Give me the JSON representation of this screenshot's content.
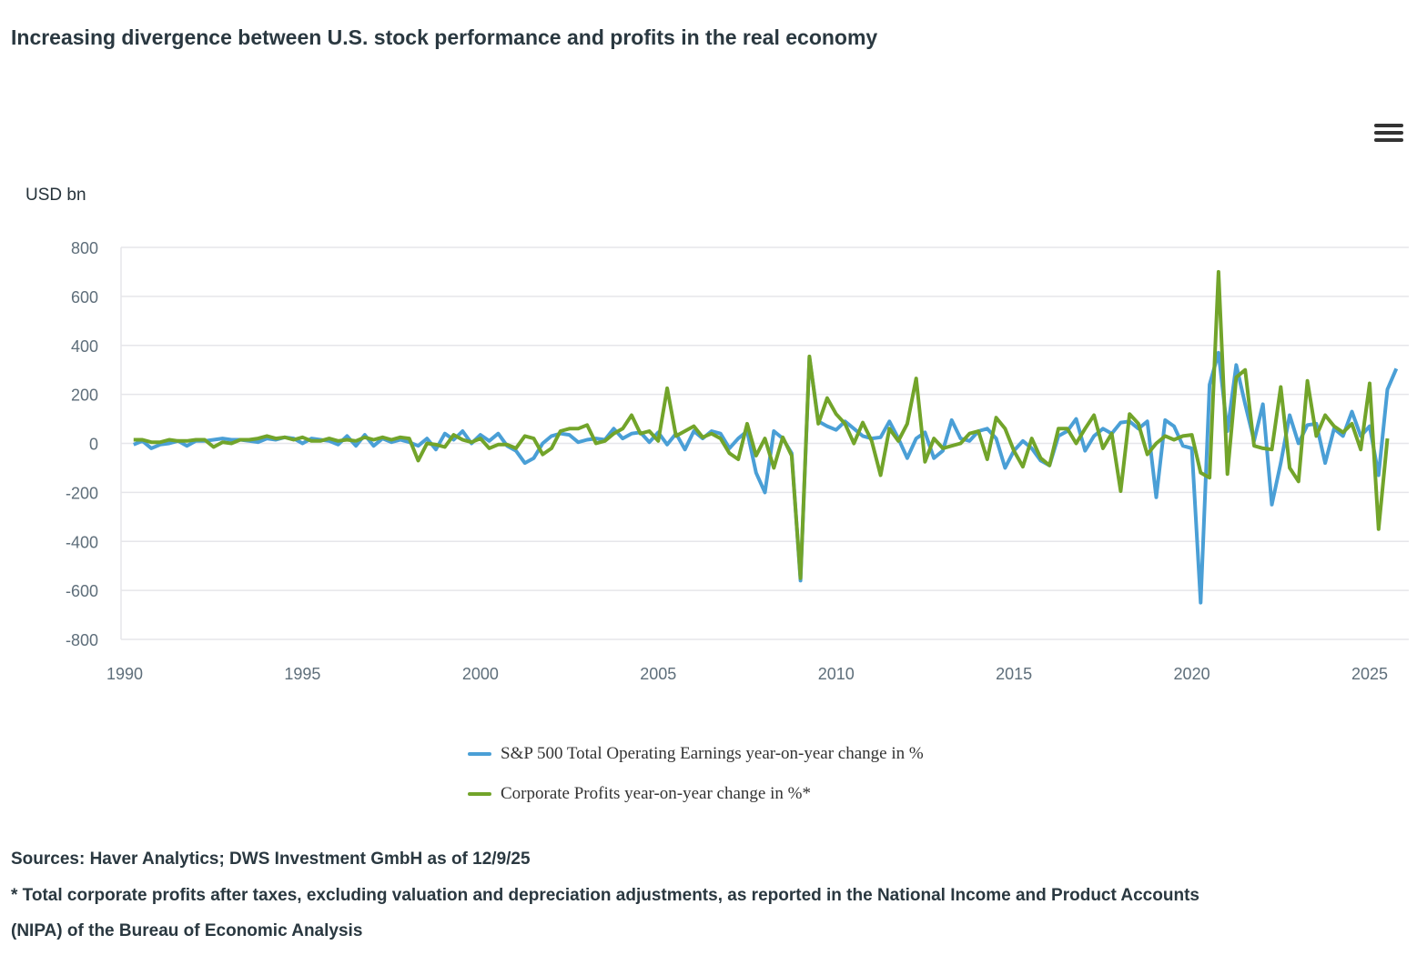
{
  "title": "Increasing divergence between U.S. stock performance and profits in the real economy",
  "menu_icon": "hamburger-menu-icon",
  "footnotes": {
    "sources": "Sources: Haver Analytics; DWS Investment GmbH as of 12/9/25",
    "note_line1": "* Total corporate profits after taxes, excluding valuation and depreciation adjustments, as reported in the National Income and Product Accounts",
    "note_line2": "(NIPA) of the Bureau of Economic Analysis"
  },
  "chart_data": {
    "type": "line",
    "ylabel": "USD bn",
    "ylim": [
      -800,
      800
    ],
    "yticks": [
      800,
      600,
      400,
      200,
      0,
      -200,
      -400,
      -600,
      -800
    ],
    "xlim": [
      1990,
      2026
    ],
    "xticks": [
      1990,
      1995,
      2000,
      2005,
      2010,
      2015,
      2020,
      2025
    ],
    "grid": true,
    "legend_position": "bottom-center",
    "x_start": 1990.25,
    "x_step": 0.25,
    "series": [
      {
        "name": "S&P 500 Total Operating Earnings year-on-year change in %",
        "color": "#4a9fd6",
        "values": [
          -5,
          10,
          -20,
          -5,
          0,
          10,
          -10,
          10,
          10,
          15,
          20,
          15,
          15,
          10,
          5,
          20,
          15,
          25,
          20,
          0,
          20,
          15,
          10,
          -5,
          30,
          -10,
          35,
          -10,
          20,
          5,
          15,
          5,
          -10,
          20,
          -25,
          40,
          15,
          50,
          0,
          35,
          10,
          40,
          -10,
          -30,
          -80,
          -60,
          0,
          30,
          40,
          35,
          5,
          15,
          20,
          15,
          60,
          20,
          40,
          45,
          5,
          45,
          -5,
          40,
          -25,
          50,
          20,
          50,
          40,
          -20,
          20,
          50,
          -120,
          -200,
          50,
          20,
          -40,
          -560,
          350,
          90,
          70,
          55,
          90,
          60,
          30,
          20,
          25,
          90,
          20,
          -60,
          20,
          45,
          -60,
          -30,
          95,
          20,
          10,
          50,
          60,
          20,
          -100,
          -30,
          10,
          -20,
          -70,
          -90,
          30,
          50,
          100,
          -30,
          30,
          60,
          40,
          85,
          90,
          60,
          90,
          -220,
          95,
          70,
          -10,
          -20,
          -650,
          240,
          370,
          50,
          320,
          160,
          10,
          160,
          -250,
          -80,
          115,
          0,
          75,
          80,
          -80,
          60,
          30,
          130,
          30,
          70,
          -130,
          220,
          305
        ]
      },
      {
        "name": "Corporate Profits year-on-year change in %*",
        "color": "#72a42a",
        "values": [
          15,
          15,
          5,
          5,
          15,
          10,
          10,
          15,
          15,
          -15,
          5,
          0,
          15,
          15,
          20,
          30,
          20,
          25,
          15,
          25,
          10,
          10,
          20,
          10,
          15,
          10,
          25,
          15,
          25,
          15,
          25,
          20,
          -70,
          0,
          -5,
          -15,
          35,
          15,
          5,
          20,
          -20,
          -5,
          -5,
          -20,
          30,
          20,
          -45,
          -20,
          50,
          60,
          60,
          75,
          0,
          10,
          40,
          60,
          115,
          40,
          50,
          10,
          225,
          30,
          50,
          70,
          25,
          40,
          20,
          -40,
          -65,
          80,
          -50,
          20,
          -100,
          25,
          -50,
          -550,
          355,
          80,
          185,
          120,
          80,
          0,
          85,
          10,
          -130,
          60,
          10,
          80,
          265,
          -75,
          20,
          -20,
          -10,
          0,
          40,
          50,
          -65,
          105,
          60,
          -30,
          -95,
          20,
          -60,
          -90,
          60,
          60,
          0,
          60,
          115,
          -20,
          40,
          -195,
          120,
          80,
          -45,
          0,
          30,
          15,
          30,
          35,
          -120,
          -140,
          700,
          -125,
          270,
          300,
          -10,
          -20,
          -25,
          230,
          -100,
          -155,
          255,
          30,
          115,
          70,
          45,
          80,
          -25,
          245,
          -350,
          20
        ]
      }
    ]
  }
}
